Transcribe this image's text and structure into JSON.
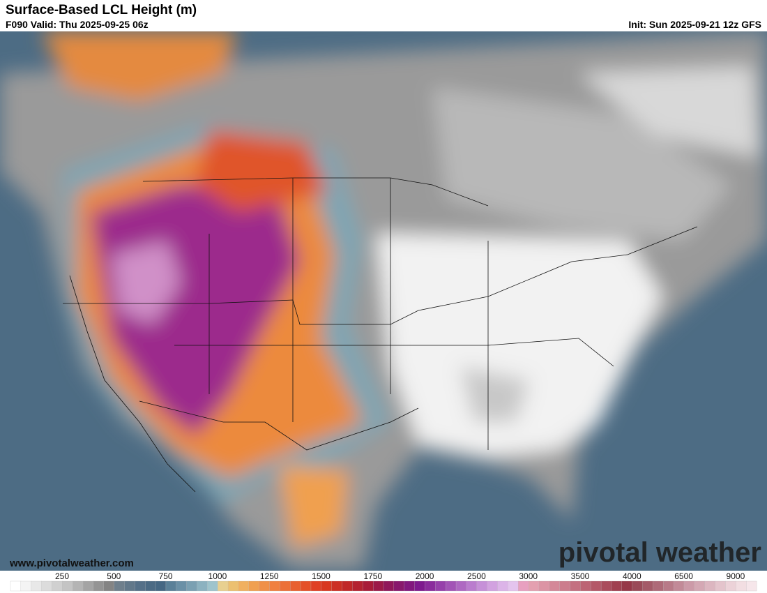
{
  "header": {
    "title": "Surface-Based LCL Height (m)",
    "valid": "F090 Valid: Thu 2025-09-25 06z",
    "init": "Init: Sun 2025-09-21 12z GFS"
  },
  "footer": {
    "website": "www.pivotalweather.com",
    "logo": "pivotal weather"
  },
  "colorbar": {
    "labels": [
      250,
      500,
      750,
      1000,
      1250,
      1500,
      1750,
      2000,
      2500,
      3000,
      3500,
      4000,
      6500,
      9000
    ],
    "colors": [
      "#ffffff",
      "#f4f4f4",
      "#e8e8e8",
      "#dcdcdc",
      "#d0d0d0",
      "#c4c4c4",
      "#b4b4b4",
      "#a4a4a4",
      "#949494",
      "#848484",
      "#6f7f8c",
      "#62788a",
      "#557088",
      "#4b6a84",
      "#456783",
      "#5a8098",
      "#6a90a6",
      "#7aa0b2",
      "#8cb2c0",
      "#9ec4cc",
      "#e8d090",
      "#ecc070",
      "#f0b060",
      "#f0a050",
      "#f09048",
      "#f08040",
      "#ec7038",
      "#e86030",
      "#e45028",
      "#e04024",
      "#d83820",
      "#cc3024",
      "#c02828",
      "#b42230",
      "#a81c38",
      "#9c1a48",
      "#90185a",
      "#88186c",
      "#82187e",
      "#7e1a8e",
      "#8a2c9c",
      "#9640aa",
      "#a254b6",
      "#ae68c2",
      "#ba7cce",
      "#c690d8",
      "#d2a2e0",
      "#dcb4e8",
      "#e4c4ee",
      "#e8a0c0",
      "#e4a0b0",
      "#dc94a4",
      "#d48898",
      "#cc7c8c",
      "#c47080",
      "#bc6474",
      "#b45868",
      "#aa4c5c",
      "#a04050",
      "#963848",
      "#9a4a58",
      "#a45a68",
      "#ae6a78",
      "#b87a88",
      "#c28a98",
      "#cc9aa8",
      "#d4a8b4",
      "#dcb6c0",
      "#e4c4cc",
      "#ecd2d8",
      "#f2dee2",
      "#f6e6ea"
    ]
  }
}
